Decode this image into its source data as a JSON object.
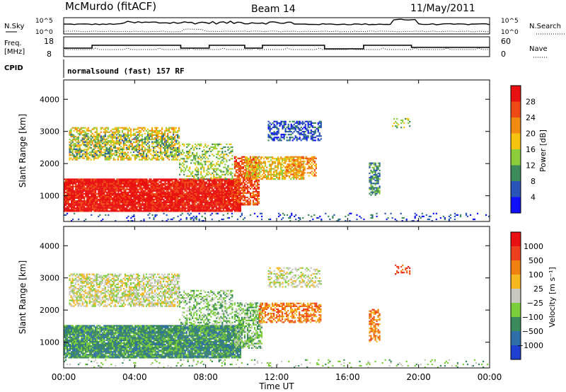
{
  "header": {
    "station": "McMurdo (fitACF)",
    "beam": "Beam 14",
    "date": "11/May/2011"
  },
  "summary_panels": {
    "nsky": {
      "left_label": "N.Sky",
      "left_ticks": [
        "10^5",
        "10^0"
      ],
      "right_label": "N.Search",
      "right_ticks": [
        "10^5",
        "10^0"
      ]
    },
    "freq": {
      "left_label_1": "Freq.",
      "left_label_2": "[MHz]",
      "left_ticks": [
        "18",
        "8"
      ],
      "right_label": "Nave",
      "right_ticks": [
        "60",
        "0"
      ]
    },
    "cpid": {
      "label": "CPID",
      "program": "normalsound (fast) 157 RF"
    }
  },
  "chart_data": [
    {
      "type": "heatmap",
      "name": "power",
      "ylabel": "Slant Range [km]",
      "xlabel": "",
      "y_ticks": [
        1000,
        2000,
        3000,
        4000
      ],
      "ylim": [
        200,
        4600
      ],
      "xlim": [
        0,
        24
      ],
      "colorbar": {
        "label": "Power [dB]",
        "ticks": [
          "4",
          "8",
          "12",
          "16",
          "20",
          "24",
          "28"
        ],
        "colors": [
          "#1010ff",
          "#2a55b8",
          "#3d8a5a",
          "#8ccd3c",
          "#f6c310",
          "#f08a10",
          "#ee4a14",
          "#e81010"
        ]
      },
      "patches": [
        {
          "t0": 0.0,
          "t1": 10.0,
          "r0": 500,
          "r1": 1500,
          "c": 7,
          "d": 0.95
        },
        {
          "t0": 0.3,
          "t1": 6.5,
          "r0": 2100,
          "r1": 3100,
          "c": 4,
          "d": 0.55
        },
        {
          "t0": 0.3,
          "t1": 6.5,
          "r0": 2200,
          "r1": 2900,
          "c": 2,
          "d": 0.25
        },
        {
          "t0": 6.5,
          "t1": 9.5,
          "r0": 1500,
          "r1": 2600,
          "c": 3,
          "d": 0.35
        },
        {
          "t0": 9.6,
          "t1": 11.0,
          "r0": 700,
          "r1": 2200,
          "c": 6,
          "d": 0.7
        },
        {
          "t0": 10.2,
          "t1": 13.5,
          "r0": 1500,
          "r1": 2200,
          "c": 4,
          "d": 0.6
        },
        {
          "t0": 11.5,
          "t1": 14.5,
          "r0": 2700,
          "r1": 3300,
          "c": 1,
          "d": 0.5
        },
        {
          "t0": 12.5,
          "t1": 14.2,
          "r0": 1600,
          "r1": 2200,
          "c": 5,
          "d": 0.55
        },
        {
          "t0": 17.2,
          "t1": 17.8,
          "r0": 1000,
          "r1": 2000,
          "c": 2,
          "d": 0.6
        },
        {
          "t0": 18.5,
          "t1": 19.5,
          "r0": 3100,
          "r1": 3400,
          "c": 3,
          "d": 0.3
        },
        {
          "t0": 0.0,
          "t1": 24.0,
          "r0": 200,
          "r1": 450,
          "c": 1,
          "d": 0.12
        }
      ]
    },
    {
      "type": "heatmap",
      "name": "velocity",
      "ylabel": "Slant Range [km]",
      "xlabel": "Time UT",
      "x_ticks": [
        "00:00",
        "04:00",
        "08:00",
        "12:00",
        "16:00",
        "20:00",
        "00:00"
      ],
      "y_ticks": [
        1000,
        2000,
        3000,
        4000
      ],
      "ylim": [
        200,
        4600
      ],
      "xlim": [
        0,
        24
      ],
      "colorbar": {
        "label": "Velocity [m s⁻¹]",
        "ticks": [
          "1000",
          "500",
          "100",
          "25",
          "−25",
          "−100",
          "−500",
          "−1000"
        ],
        "colors": [
          "#1f3fd0",
          "#2f6fa8",
          "#3b8a5c",
          "#7ccf3a",
          "#c8c8c0",
          "#f6b820",
          "#f08010",
          "#ee4020",
          "#e81010"
        ]
      },
      "patches": [
        {
          "t0": 0.0,
          "t1": 10.0,
          "r0": 500,
          "r1": 1500,
          "c": 2,
          "d": 0.95
        },
        {
          "t0": 0.3,
          "t1": 6.5,
          "r0": 2100,
          "r1": 3100,
          "c": 4,
          "d": 0.6
        },
        {
          "t0": 6.5,
          "t1": 9.5,
          "r0": 1500,
          "r1": 2600,
          "c": 3,
          "d": 0.4
        },
        {
          "t0": 9.6,
          "t1": 11.2,
          "r0": 800,
          "r1": 2200,
          "c": 3,
          "d": 0.6
        },
        {
          "t0": 11.0,
          "t1": 14.5,
          "r0": 1600,
          "r1": 2200,
          "c": 6,
          "d": 0.6
        },
        {
          "t0": 11.5,
          "t1": 14.5,
          "r0": 2700,
          "r1": 3300,
          "c": 4,
          "d": 0.4
        },
        {
          "t0": 17.2,
          "t1": 17.8,
          "r0": 1000,
          "r1": 2000,
          "c": 6,
          "d": 0.6
        },
        {
          "t0": 18.5,
          "t1": 19.5,
          "r0": 3100,
          "r1": 3400,
          "c": 7,
          "d": 0.3
        },
        {
          "t0": 0.0,
          "t1": 24.0,
          "r0": 200,
          "r1": 450,
          "c": 3,
          "d": 0.1
        }
      ]
    }
  ]
}
